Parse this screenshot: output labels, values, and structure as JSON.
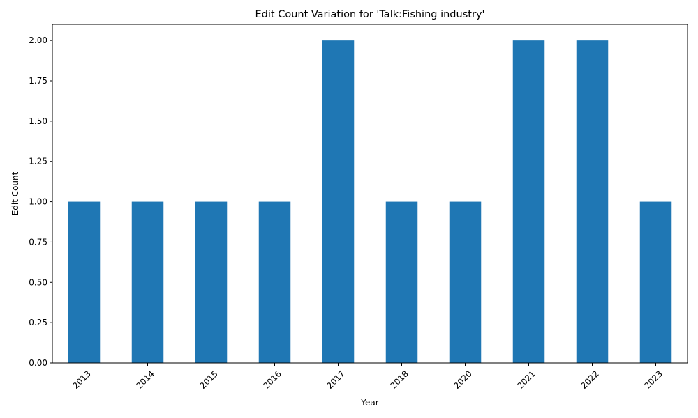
{
  "chart_data": {
    "type": "bar",
    "title": "Edit Count Variation for 'Talk:Fishing industry'",
    "xlabel": "Year",
    "ylabel": "Edit Count",
    "categories": [
      "2013",
      "2014",
      "2015",
      "2016",
      "2017",
      "2018",
      "2020",
      "2021",
      "2022",
      "2023"
    ],
    "values": [
      1,
      1,
      1,
      1,
      2,
      1,
      1,
      2,
      2,
      1
    ],
    "ylim": [
      0,
      2.1
    ],
    "yticks": [
      "0.00",
      "0.25",
      "0.50",
      "0.75",
      "1.00",
      "1.25",
      "1.50",
      "1.75",
      "2.00"
    ],
    "bar_color": "#1f77b4",
    "grid": false,
    "legend": "none"
  }
}
